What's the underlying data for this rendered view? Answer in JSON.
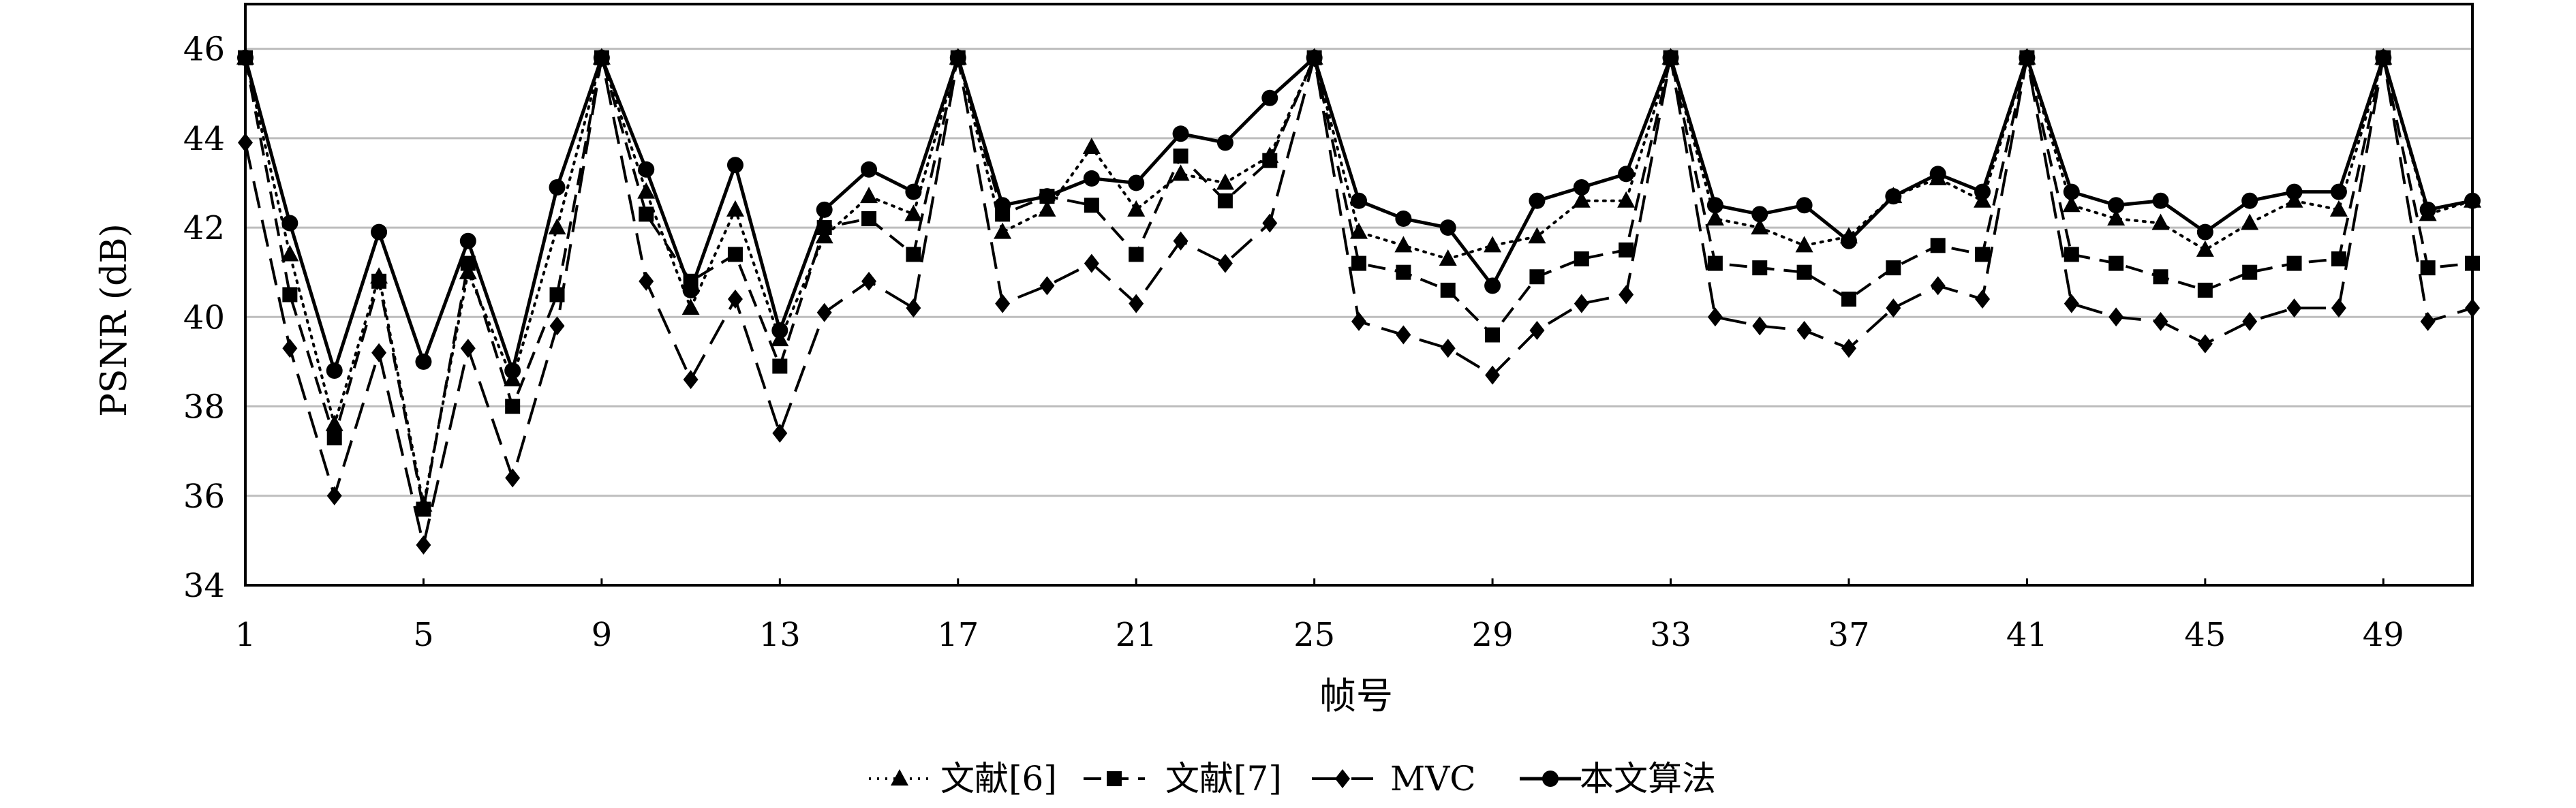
{
  "chart_data": {
    "type": "line",
    "xlabel": "帧号",
    "ylabel": "PSNR (dB)",
    "xlim": [
      1,
      51
    ],
    "ylim": [
      34,
      47
    ],
    "x_ticks": [
      1,
      5,
      9,
      13,
      17,
      21,
      25,
      29,
      33,
      37,
      41,
      45,
      49
    ],
    "y_ticks": [
      34,
      36,
      38,
      40,
      42,
      44,
      46
    ],
    "grid": "horizontal",
    "legend_position": "bottom",
    "x": [
      1,
      2,
      3,
      4,
      5,
      6,
      7,
      8,
      9,
      10,
      11,
      12,
      13,
      14,
      15,
      16,
      17,
      18,
      19,
      20,
      21,
      22,
      23,
      24,
      25,
      26,
      27,
      28,
      29,
      30,
      31,
      32,
      33,
      34,
      35,
      36,
      37,
      38,
      39,
      40,
      41,
      42,
      43,
      44,
      45,
      46,
      47,
      48,
      49,
      50,
      51
    ],
    "series": [
      {
        "name": "文献[6]",
        "marker": "triangle",
        "dash": "dotted",
        "values": [
          45.8,
          41.4,
          37.6,
          40.9,
          35.8,
          41.0,
          38.6,
          42.0,
          45.8,
          42.8,
          40.2,
          42.4,
          39.5,
          41.8,
          42.7,
          42.3,
          45.8,
          41.9,
          42.4,
          43.8,
          42.4,
          43.2,
          43.0,
          43.6,
          45.8,
          41.9,
          41.6,
          41.3,
          41.6,
          41.8,
          42.6,
          42.6,
          45.8,
          42.2,
          42.0,
          41.6,
          41.8,
          42.7,
          43.1,
          42.6,
          45.8,
          42.5,
          42.2,
          42.1,
          41.5,
          42.1,
          42.6,
          42.4,
          45.8,
          42.3,
          42.6
        ]
      },
      {
        "name": "文献[7]",
        "marker": "square",
        "dash": "dashed",
        "values": [
          45.8,
          40.5,
          37.3,
          40.8,
          35.7,
          41.2,
          38.0,
          40.5,
          45.8,
          42.3,
          40.8,
          41.4,
          38.9,
          42.0,
          42.2,
          41.4,
          45.8,
          42.3,
          42.7,
          42.5,
          41.4,
          43.6,
          42.6,
          43.5,
          45.8,
          41.2,
          41.0,
          40.6,
          39.6,
          40.9,
          41.3,
          41.5,
          45.8,
          41.2,
          41.1,
          41.0,
          40.4,
          41.1,
          41.6,
          41.4,
          45.8,
          41.4,
          41.2,
          40.9,
          40.6,
          41.0,
          41.2,
          41.3,
          45.8,
          41.1,
          41.2
        ]
      },
      {
        "name": "MVC",
        "marker": "diamond",
        "dash": "longdash",
        "values": [
          43.9,
          39.3,
          36.0,
          39.2,
          34.9,
          39.3,
          36.4,
          39.8,
          45.8,
          40.8,
          38.6,
          40.4,
          37.4,
          40.1,
          40.8,
          40.2,
          45.8,
          40.3,
          40.7,
          41.2,
          40.3,
          41.7,
          41.2,
          42.1,
          45.8,
          39.9,
          39.6,
          39.3,
          38.7,
          39.7,
          40.3,
          40.5,
          45.8,
          40.0,
          39.8,
          39.7,
          39.3,
          40.2,
          40.7,
          40.4,
          45.8,
          40.3,
          40.0,
          39.9,
          39.4,
          39.9,
          40.2,
          40.2,
          45.8,
          39.9,
          40.2
        ]
      },
      {
        "name": "本文算法",
        "marker": "circle",
        "dash": "solid",
        "values": [
          45.8,
          42.1,
          38.8,
          41.9,
          39.0,
          41.7,
          38.8,
          42.9,
          45.8,
          43.3,
          40.6,
          43.4,
          39.7,
          42.4,
          43.3,
          42.8,
          45.8,
          42.5,
          42.7,
          43.1,
          43.0,
          44.1,
          43.9,
          44.9,
          45.8,
          42.6,
          42.2,
          42.0,
          40.7,
          42.6,
          42.9,
          43.2,
          45.8,
          42.5,
          42.3,
          42.5,
          41.7,
          42.7,
          43.2,
          42.8,
          45.8,
          42.8,
          42.5,
          42.6,
          41.9,
          42.6,
          42.8,
          42.8,
          45.8,
          42.4,
          42.6
        ]
      }
    ]
  }
}
